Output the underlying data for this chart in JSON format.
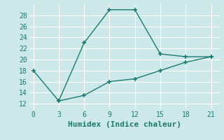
{
  "line1_x": [
    0,
    3,
    6,
    9,
    12,
    15,
    18,
    21
  ],
  "line1_y": [
    18,
    12.5,
    23,
    29,
    29,
    21,
    20.5,
    20.5
  ],
  "line2_x": [
    3,
    6,
    9,
    12,
    15,
    18,
    21
  ],
  "line2_y": [
    12.5,
    13.5,
    16,
    16.5,
    18,
    19.5,
    20.5
  ],
  "color": "#1a7a6e",
  "bg_color": "#cce8e8",
  "grid_color": "#ffffff",
  "xlabel": "Humidex (Indice chaleur)",
  "xlim": [
    -0.5,
    22
  ],
  "ylim": [
    11,
    30
  ],
  "xticks": [
    0,
    3,
    6,
    9,
    12,
    15,
    18,
    21
  ],
  "yticks": [
    12,
    14,
    16,
    18,
    20,
    22,
    24,
    26,
    28
  ],
  "tick_fontsize": 7,
  "xlabel_fontsize": 8
}
